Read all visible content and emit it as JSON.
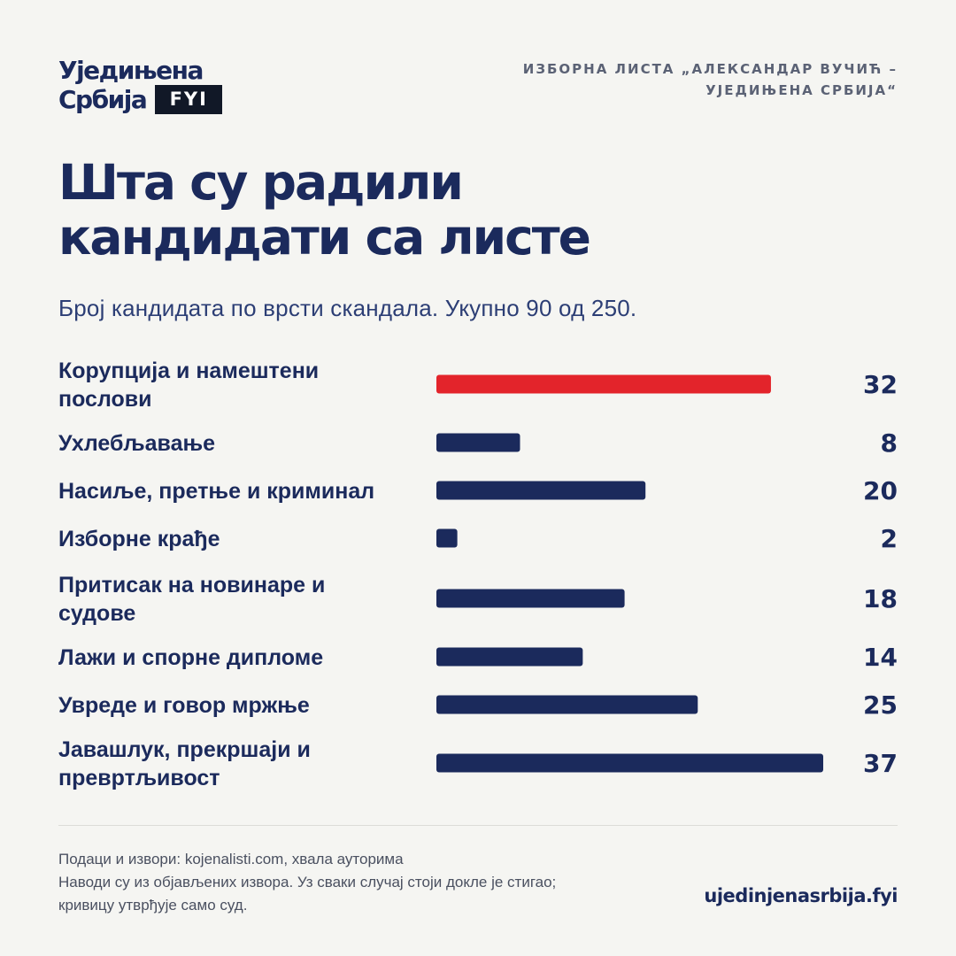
{
  "logo": {
    "line1": "Уједињена",
    "line2": "Србија",
    "badge": "FYI"
  },
  "header": {
    "list_line1": "ИЗБОРНА ЛИСТА „АЛЕКСАНДАР ВУЧИЋ –",
    "list_line2": "УЈЕДИЊЕНА СРБИЈА“"
  },
  "title": {
    "line1": "Шта су радили",
    "line2": "кандидати са листе"
  },
  "subtitle": "Број кандидата по врсти скандала. Укупно 90 од 250.",
  "colors": {
    "highlight": "#e3242b",
    "bar": "#1b2a5c",
    "text": "#1b2a5c",
    "background": "#f5f5f2"
  },
  "chart_data": {
    "type": "bar",
    "orientation": "horizontal",
    "categories": [
      [
        "Корупција и намештени",
        "послови"
      ],
      [
        "Ухлебљавање"
      ],
      [
        "Насиље, претње и криминал"
      ],
      [
        "Изборне крађе"
      ],
      [
        "Притисак на новинаре и",
        "судове"
      ],
      [
        "Лажи и спорне дипломе"
      ],
      [
        "Увреде и говор мржње"
      ],
      [
        "Јавашлук, прекршаји и",
        "превртљивост"
      ]
    ],
    "values": [
      32,
      8,
      20,
      2,
      18,
      14,
      25,
      37
    ],
    "highlight_index": 0,
    "xlim": [
      0,
      37
    ],
    "grid": false,
    "legend": "none"
  },
  "footer": {
    "line1": "Подаци и извори: kojenalisti.com, хвала ауторима",
    "line2": "Наводи су из објављених извора. Уз сваки случај стоји докле је стигао;",
    "line3": "кривицу утврђује само суд."
  },
  "site": "ujedinjenasrbija.fyi"
}
